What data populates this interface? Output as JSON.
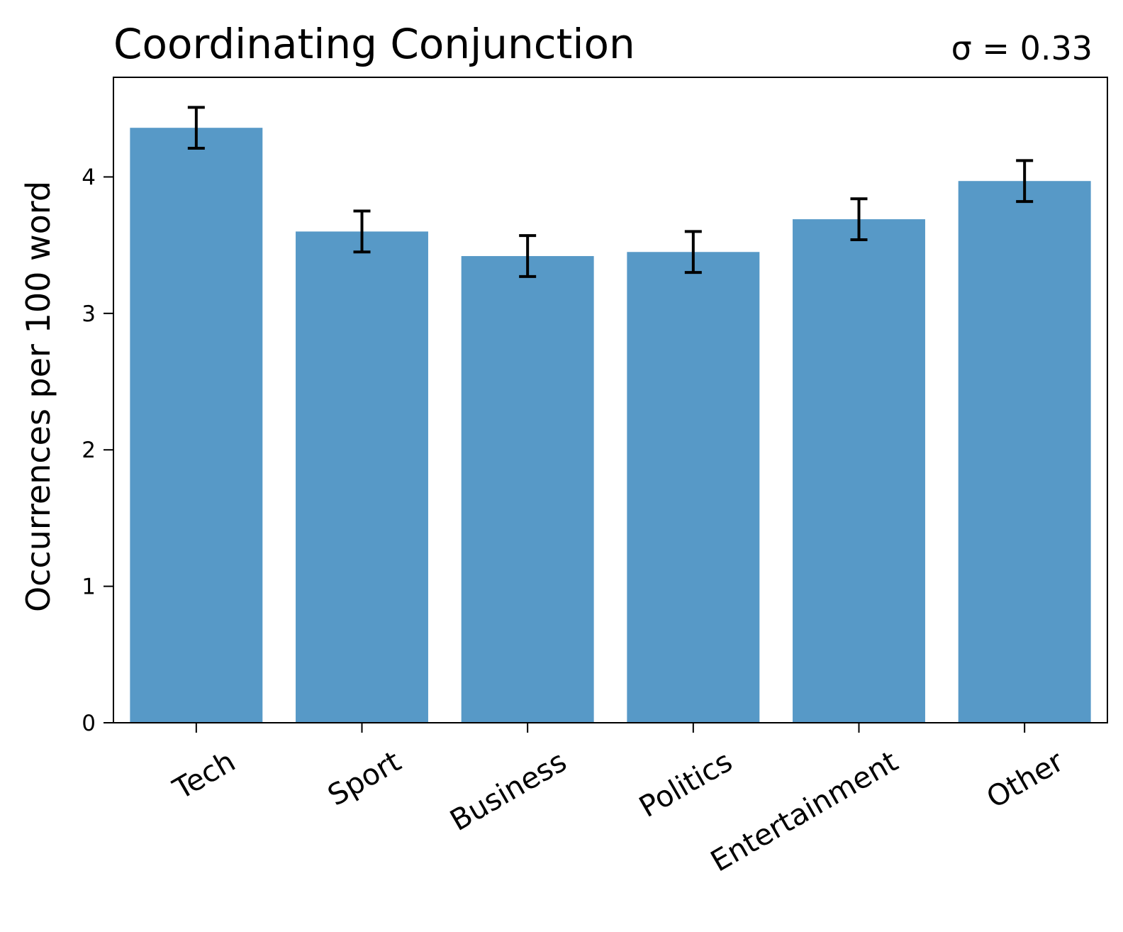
{
  "chart_data": {
    "type": "bar",
    "title": "Coordinating Conjunction",
    "annotation": "σ = 0.33",
    "xlabel": "",
    "ylabel": "Occurrences per 100 word",
    "categories": [
      "Tech",
      "Sport",
      "Business",
      "Politics",
      "Entertainment",
      "Other"
    ],
    "values": [
      4.36,
      3.6,
      3.42,
      3.45,
      3.69,
      3.97
    ],
    "errors": [
      0.15,
      0.15,
      0.15,
      0.15,
      0.15,
      0.15
    ],
    "ylim": [
      0,
      4.73
    ],
    "yticks": [
      0,
      1,
      2,
      3,
      4
    ],
    "bar_color": "#5799c7",
    "grid": false,
    "legend": "none"
  }
}
